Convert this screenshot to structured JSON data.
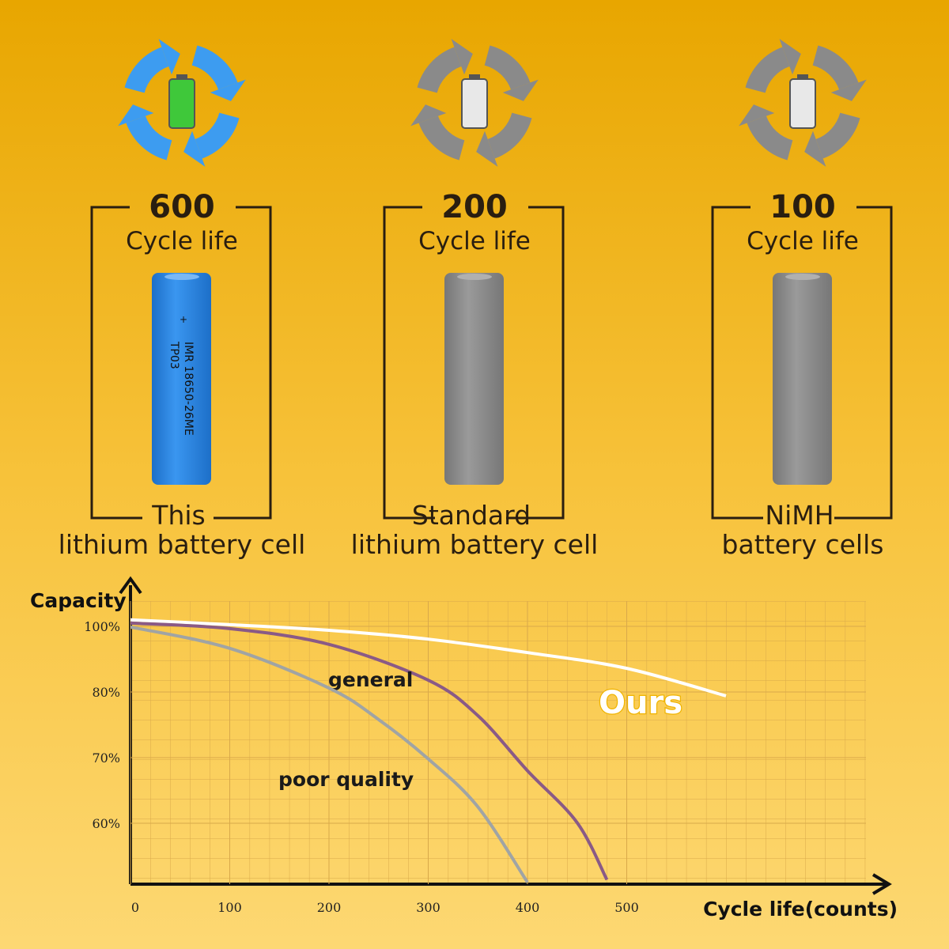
{
  "columns": [
    {
      "cycles": 600,
      "unit": "Cycle life",
      "label": [
        "This",
        "lithium battery cell"
      ],
      "battery_text": [
        "+",
        "IMR 18650-26ME",
        "TP03"
      ]
    },
    {
      "cycles": 200,
      "unit": "Cycle life",
      "label": [
        "Standard",
        "lithium battery cell"
      ]
    },
    {
      "cycles": 100,
      "unit": "Cycle life",
      "label": [
        "NiMH",
        "battery cells"
      ]
    }
  ],
  "chart_data": {
    "type": "line",
    "y_label": "Capacity",
    "x_label": "Cycle life(counts)",
    "xlim": [
      0,
      740
    ],
    "ylim": [
      51,
      108
    ],
    "xticks": [
      0,
      100,
      200,
      300,
      400,
      500
    ],
    "yticks": [
      {
        "value": 100,
        "label": "100%"
      },
      {
        "value": 80,
        "label": "80%"
      },
      {
        "value": 70,
        "label": "70%"
      },
      {
        "value": 60,
        "label": "60%"
      }
    ],
    "grid": true,
    "series": [
      {
        "name": "Ours",
        "color": "#ffffff",
        "x": [
          0,
          100,
          200,
          300,
          400,
          500,
          600
        ],
        "values": [
          102,
          100.5,
          98.8,
          96.1,
          92,
          87.2,
          79.4
        ]
      },
      {
        "name": "general",
        "color": "#8a5a86",
        "x": [
          0,
          100,
          200,
          300,
          350,
          400,
          450,
          480
        ],
        "values": [
          101,
          99.3,
          94.5,
          83.6,
          76.4,
          68,
          60.1,
          51.4
        ]
      },
      {
        "name": "poor quality",
        "color": "#a0a4a4",
        "x": [
          0,
          100,
          200,
          250,
          300,
          350,
          400
        ],
        "values": [
          99.8,
          93.3,
          81.2,
          75.8,
          69.8,
          62.5,
          51
        ]
      }
    ]
  }
}
